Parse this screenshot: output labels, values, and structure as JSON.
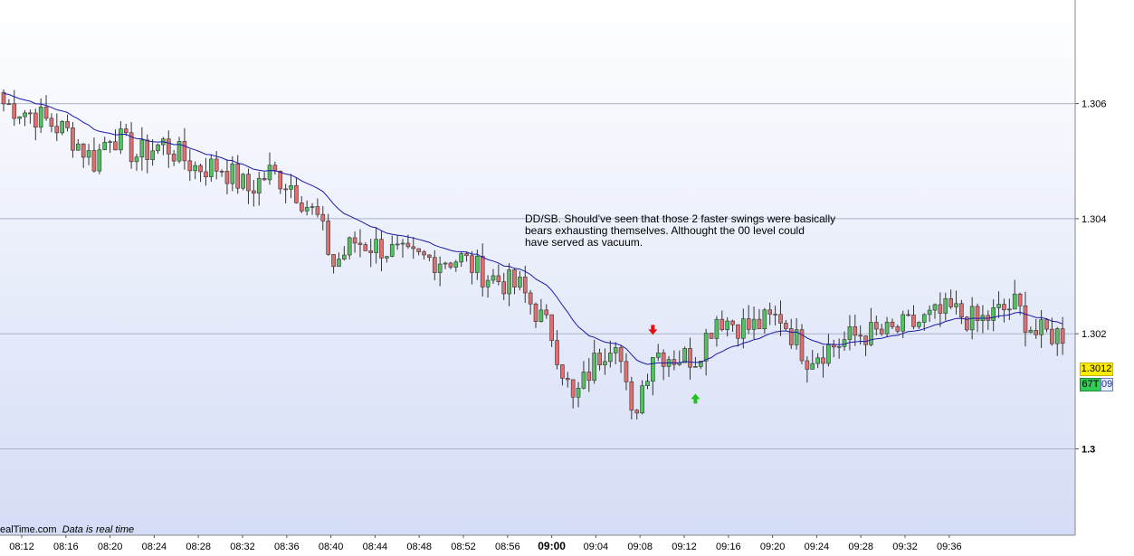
{
  "chart_data": {
    "type": "candlestick",
    "y_axis": {
      "min": 1.2985,
      "max": 1.3078,
      "gridlines": [
        1.306,
        1.304,
        1.302,
        1.3
      ],
      "tick_labels": [
        "1.306",
        "1.304",
        "1.302",
        "1.3"
      ],
      "position": "right"
    },
    "x_axis": {
      "tick_labels": [
        "08:12",
        "08:16",
        "08:20",
        "08:24",
        "08:28",
        "08:32",
        "08:36",
        "08:40",
        "08:44",
        "08:48",
        "08:52",
        "08:56",
        "09:00",
        "09:04",
        "09:08",
        "09:12",
        "09:16",
        "09:20",
        "09:24",
        "09:28",
        "09:32",
        "09:36"
      ],
      "bold_label": "09:00"
    },
    "moving_average_color": "#1a1aa8",
    "up_color": "#55c060",
    "down_color": "#e07070",
    "annotation_lines": [
      "DD/SB. Should've seen that those 2 faster swings were basically",
      "bears exhausting themselves. Althought the 00 level could",
      "have served as vacuum."
    ],
    "markers": [
      {
        "type": "down-arrow",
        "color": "#e01010",
        "bar_index": 122
      },
      {
        "type": "up-arrow",
        "color": "#20c020",
        "bar_index": 130
      }
    ],
    "price_tag_last": "1.3012",
    "price_tag_ticks": "67T",
    "price_tag_interval": "09",
    "credit_site": "ealTime.com",
    "credit_note": "Data is real time",
    "close_anchors": [
      [
        0,
        1.306
      ],
      [
        6,
        1.3058
      ],
      [
        12,
        1.3055
      ],
      [
        17,
        1.305
      ],
      [
        20,
        1.3055
      ],
      [
        25,
        1.3051
      ],
      [
        30,
        1.3053
      ],
      [
        36,
        1.3049
      ],
      [
        41,
        1.3049
      ],
      [
        46,
        1.3045
      ],
      [
        50,
        1.3048
      ],
      [
        54,
        1.3046
      ],
      [
        59,
        1.304
      ],
      [
        62,
        1.3032
      ],
      [
        66,
        1.3036
      ],
      [
        71,
        1.3035
      ],
      [
        76,
        1.3033
      ],
      [
        81,
        1.3033
      ],
      [
        86,
        1.3033
      ],
      [
        91,
        1.303
      ],
      [
        97,
        1.3028
      ],
      [
        103,
        1.302
      ],
      [
        107,
        1.3008
      ],
      [
        111,
        1.3015
      ],
      [
        115,
        1.302
      ],
      [
        118,
        1.3005
      ],
      [
        122,
        1.3017
      ],
      [
        126,
        1.3016
      ],
      [
        130,
        1.3016
      ],
      [
        134,
        1.3023
      ],
      [
        140,
        1.3021
      ],
      [
        146,
        1.3023
      ],
      [
        151,
        1.3016
      ],
      [
        156,
        1.3018
      ],
      [
        161,
        1.302
      ],
      [
        166,
        1.302
      ],
      [
        172,
        1.3022
      ],
      [
        178,
        1.3024
      ],
      [
        183,
        1.3022
      ],
      [
        190,
        1.3025
      ],
      [
        194,
        1.302
      ],
      [
        199,
        1.302
      ]
    ]
  }
}
